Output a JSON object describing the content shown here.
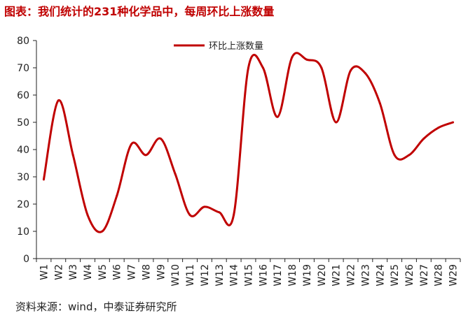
{
  "title": "图表：我们统计的231种化学品中，每周环比上涨数量",
  "source": "资料来源：wind，中泰证券研究所",
  "chart_data": {
    "type": "line",
    "title": "图表：我们统计的231种化学品中，每周环比上涨数量",
    "xlabel": "",
    "ylabel": "",
    "ylim": [
      0,
      80
    ],
    "yticks": [
      0,
      10,
      20,
      30,
      40,
      50,
      60,
      70,
      80
    ],
    "grid": false,
    "legend_position": "top-center",
    "categories": [
      "W1",
      "W2",
      "W3",
      "W4",
      "W5",
      "W6",
      "W7",
      "W8",
      "W9",
      "W10",
      "W11",
      "W12",
      "W13",
      "W14",
      "W15",
      "W16",
      "W17",
      "W18",
      "W19",
      "W20",
      "W21",
      "W22",
      "W23",
      "W24",
      "W25",
      "W26",
      "W27",
      "W28",
      "W29"
    ],
    "series": [
      {
        "name": "环比上涨数量",
        "color": "#c00000",
        "values": [
          29,
          58,
          38,
          16,
          10,
          23,
          42,
          38,
          44,
          31,
          16,
          19,
          17,
          16,
          70,
          70,
          52,
          74,
          73,
          70,
          50,
          69,
          68,
          57,
          38,
          38,
          44,
          48,
          50
        ]
      }
    ]
  }
}
